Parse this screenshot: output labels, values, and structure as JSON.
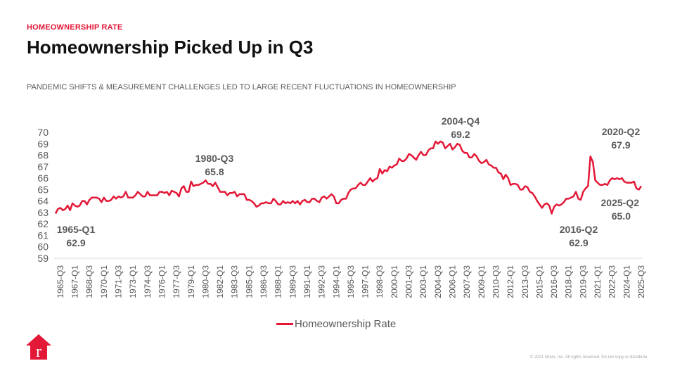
{
  "header": {
    "kicker": "HOMEOWNERSHIP RATE",
    "title": "Homeownership Picked Up in Q3",
    "subtitle": "PANDEMIC SHIFTS & MEASUREMENT CHALLENGES LED TO LARGE RECENT FLUCTUATIONS IN HOMEOWNERSHIP"
  },
  "footer": {
    "copyright": "© 2021 Move, Inc. All rights reserved. Do not copy or distribute.",
    "logo_letter": "r"
  },
  "colors": {
    "accent": "#e31837",
    "text_gray": "#595959"
  },
  "chart_data": {
    "type": "line",
    "title": "",
    "xlabel": "",
    "ylabel": "",
    "ylim": [
      59,
      70
    ],
    "yticks": [
      59,
      60,
      61,
      62,
      63,
      64,
      65,
      66,
      67,
      68,
      69,
      70
    ],
    "grid": false,
    "legend_position": "bottom",
    "start_quarter": "1965-Q1",
    "end_quarter": "2025-Q3",
    "xtick_labels": [
      "1965-Q3",
      "1967-Q1",
      "1968-Q3",
      "1970-Q1",
      "1971-Q3",
      "1973-Q1",
      "1974-Q3",
      "1976-Q1",
      "1977-Q3",
      "1979-Q1",
      "1980-Q3",
      "1982-Q1",
      "1983-Q3",
      "1985-Q1",
      "1986-Q3",
      "1988-Q1",
      "1989-Q3",
      "1991-Q1",
      "1992-Q3",
      "1994-Q1",
      "1995-Q3",
      "1997-Q1",
      "1998-Q3",
      "2000-Q1",
      "2001-Q3",
      "2003-Q1",
      "2004-Q3",
      "2006-Q1",
      "2007-Q3",
      "2009-Q1",
      "2010-Q3",
      "2012-Q1",
      "2013-Q3",
      "2015-Q1",
      "2016-Q3",
      "2018-Q1",
      "2019-Q3",
      "2021-Q1",
      "2022-Q3",
      "2024-Q1",
      "2025-Q3"
    ],
    "series": [
      {
        "name": "Homeownership Rate",
        "color": "#e31837",
        "values": [
          62.9,
          63.3,
          63.4,
          63.2,
          63.3,
          63.6,
          63.2,
          63.8,
          63.6,
          63.5,
          63.6,
          64.0,
          64.0,
          63.7,
          64.1,
          64.3,
          64.3,
          64.3,
          64.2,
          63.9,
          64.3,
          64.0,
          64.0,
          64.1,
          64.4,
          64.2,
          64.4,
          64.3,
          64.4,
          64.8,
          64.3,
          64.3,
          64.3,
          64.5,
          64.8,
          64.6,
          64.4,
          64.4,
          64.8,
          64.5,
          64.5,
          64.5,
          64.5,
          64.8,
          64.8,
          64.7,
          64.8,
          64.5,
          64.9,
          64.8,
          64.7,
          64.4,
          65.1,
          65.3,
          64.8,
          64.8,
          65.7,
          65.3,
          65.4,
          65.4,
          65.5,
          65.6,
          65.8,
          65.5,
          65.5,
          65.3,
          65.6,
          65.2,
          64.8,
          64.8,
          64.8,
          64.5,
          64.7,
          64.7,
          64.8,
          64.4,
          64.6,
          64.6,
          64.6,
          64.1,
          64.1,
          64.0,
          63.8,
          63.5,
          63.6,
          63.8,
          63.8,
          63.9,
          63.8,
          63.8,
          64.2,
          64.0,
          63.7,
          63.7,
          64.0,
          63.8,
          63.9,
          63.8,
          64.0,
          63.8,
          64.0,
          63.7,
          64.0,
          64.1,
          63.9,
          63.9,
          64.2,
          64.2,
          64.0,
          63.9,
          64.3,
          64.4,
          64.2,
          64.4,
          64.6,
          64.4,
          63.8,
          63.8,
          64.1,
          64.2,
          64.2,
          64.7,
          65.0,
          65.1,
          65.1,
          65.4,
          65.6,
          65.4,
          65.4,
          65.7,
          66.0,
          65.7,
          65.9,
          66.0,
          66.8,
          66.4,
          66.7,
          66.6,
          67.0,
          66.9,
          67.1,
          67.2,
          67.7,
          67.5,
          67.5,
          67.7,
          68.1,
          68.0,
          67.8,
          67.6,
          68.0,
          68.3,
          68.0,
          68.0,
          68.4,
          68.6,
          68.6,
          69.2,
          69.0,
          69.2,
          69.1,
          68.6,
          68.8,
          69.0,
          68.5,
          68.7,
          69.0,
          68.9,
          68.4,
          68.2,
          68.2,
          67.8,
          67.8,
          68.1,
          67.9,
          67.5,
          67.3,
          67.4,
          67.6,
          67.2,
          67.1,
          66.9,
          66.9,
          66.5,
          66.4,
          65.9,
          66.3,
          66.0,
          65.4,
          65.5,
          65.5,
          65.4,
          65.0,
          65.0,
          65.3,
          65.2,
          64.8,
          64.7,
          64.4,
          64.0,
          63.7,
          63.4,
          63.7,
          63.8,
          63.6,
          62.9,
          63.5,
          63.7,
          63.6,
          63.7,
          63.9,
          64.2,
          64.2,
          64.3,
          64.4,
          64.8,
          64.2,
          64.1,
          64.8,
          65.1,
          65.3,
          67.9,
          67.4,
          65.8,
          65.6,
          65.4,
          65.4,
          65.5,
          65.4,
          65.8,
          66.0,
          65.9,
          66.0,
          65.9,
          66.0,
          65.7,
          65.6,
          65.6,
          65.6,
          65.7,
          65.1,
          65.0,
          65.3
        ]
      }
    ],
    "annotations": [
      {
        "label": "1965-Q1",
        "value": "62.9"
      },
      {
        "label": "1980-Q3",
        "value": "65.8"
      },
      {
        "label": "2004-Q4",
        "value": "69.2"
      },
      {
        "label": "2016-Q2",
        "value": "62.9"
      },
      {
        "label": "2020-Q2",
        "value": "67.9"
      },
      {
        "label": "2025-Q2",
        "value": "65.0"
      }
    ]
  }
}
